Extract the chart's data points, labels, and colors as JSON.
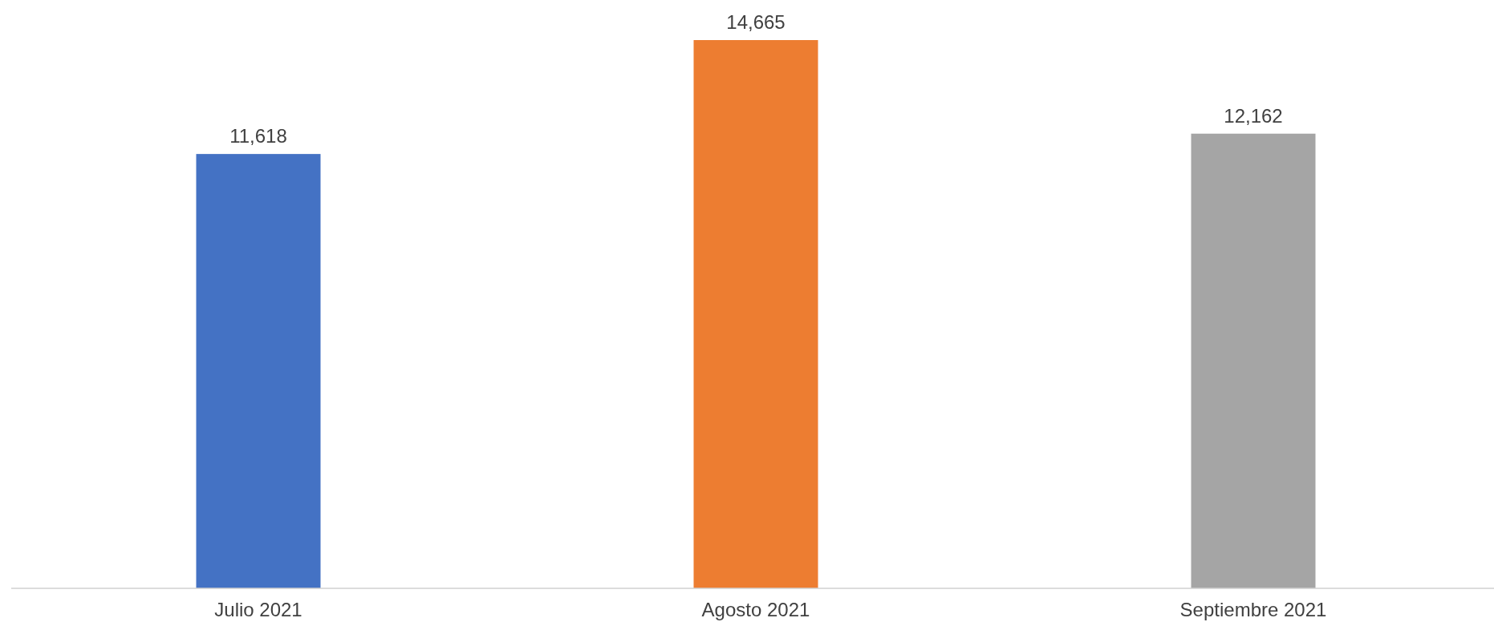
{
  "chart_data": {
    "type": "bar",
    "categories": [
      "Julio 2021",
      "Agosto 2021",
      "Septiembre 2021"
    ],
    "values": [
      11618,
      14665,
      12162
    ],
    "value_labels": [
      "11,618",
      "14,665",
      "12,162"
    ],
    "colors": [
      "#4472c4",
      "#ed7d31",
      "#a5a5a5"
    ]
  }
}
